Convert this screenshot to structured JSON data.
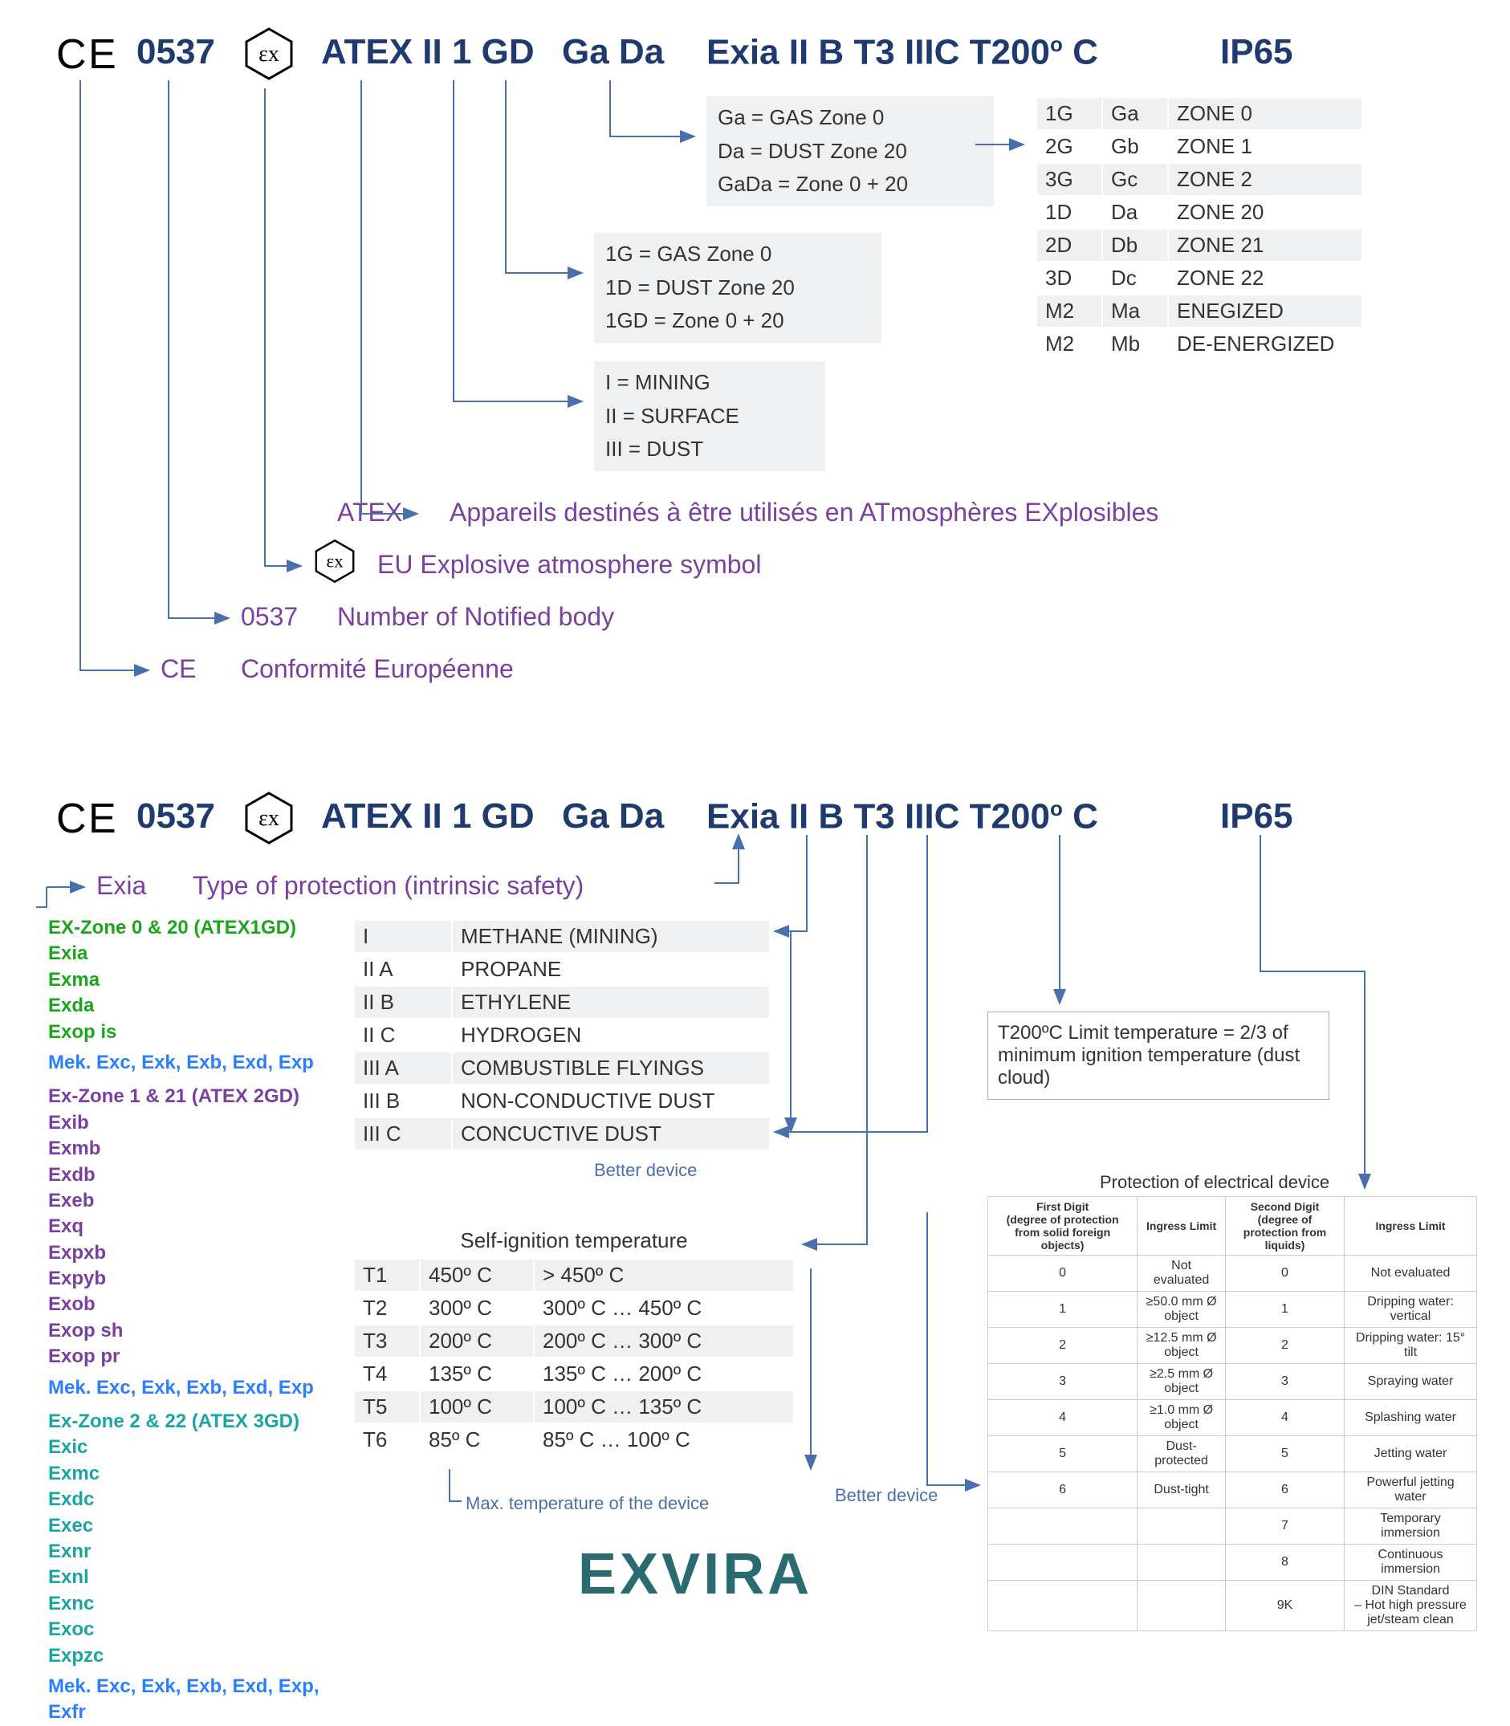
{
  "header": {
    "ce_text": "C E",
    "nb": "0537",
    "atex": "ATEX II 1 GD",
    "gada": "Ga Da",
    "exia": "Exia II B T3 IIIC T200",
    "exia_unit": "C",
    "ip": "IP65"
  },
  "gada_box": {
    "lines": [
      "Ga = GAS Zone 0",
      "Da = DUST Zone 20",
      "GaDa = Zone 0 + 20"
    ]
  },
  "onegd_box": {
    "lines": [
      "1G = GAS Zone 0",
      "1D = DUST Zone 20",
      "1GD = Zone 0 + 20"
    ]
  },
  "group_box": {
    "lines": [
      "I = MINING",
      "II = SURFACE",
      "III =  DUST"
    ]
  },
  "epl_table": {
    "rows": [
      [
        "1G",
        "Ga",
        "ZONE 0"
      ],
      [
        "2G",
        "Gb",
        "ZONE 1"
      ],
      [
        "3G",
        "Gc",
        "ZONE 2"
      ],
      [
        "1D",
        "Da",
        "ZONE 20"
      ],
      [
        "2D",
        "Db",
        "ZONE 21"
      ],
      [
        "3D",
        "Dc",
        "ZONE 22"
      ],
      [
        "M2",
        "Ma",
        "ENEGIZED"
      ],
      [
        "M2",
        "Mb",
        "DE-ENERGIZED"
      ]
    ]
  },
  "defs": {
    "atex_key": "ATEX",
    "atex_val": "Appareils destinés à être utilisés en ATmosphères EXplosibles",
    "ex_val": "EU Explosive atmosphere symbol",
    "nb_key": "0537",
    "nb_val": "Number of Notified body",
    "ce_key": "CE",
    "ce_val": "Conformité Européenne"
  },
  "exia_def": {
    "key": "Exia",
    "val": "Type of protection (intrinsic safety)"
  },
  "gas_table": {
    "rows": [
      [
        "I",
        "METHANE (MINING)"
      ],
      [
        "II A",
        "PROPANE"
      ],
      [
        "II B",
        "ETHYLENE"
      ],
      [
        "II C",
        "HYDROGEN"
      ],
      [
        "III A",
        "COMBUSTIBLE FLYINGS"
      ],
      [
        "III B",
        "NON-CONDUCTIVE DUST"
      ],
      [
        "III C",
        "CONCUCTIVE DUST"
      ]
    ],
    "better": "Better device"
  },
  "temp_table": {
    "title": "Self-ignition temperature",
    "rows": [
      [
        "T1",
        "450º C",
        "> 450º C"
      ],
      [
        "T2",
        "300º C",
        "300º C … 450º C"
      ],
      [
        "T3",
        "200º C",
        "200º C … 300º C"
      ],
      [
        "T4",
        "135º C",
        "135º C … 200º C"
      ],
      [
        "T5",
        "100º C",
        "100º C … 135º C"
      ],
      [
        "T6",
        "85º C",
        "85º C … 100º C"
      ]
    ],
    "max_note": "Max. temperature of the device",
    "better": "Better device"
  },
  "ex_types": {
    "z0_title": "EX-Zone 0 & 20 (ATEX1GD)",
    "z0_items": [
      "Exia",
      "Exma",
      "Exda",
      "Exop is"
    ],
    "z0_mek": "Mek. Exc, Exk, Exb, Exd, Exp",
    "z1_title": "Ex-Zone 1 & 21 (ATEX 2GD)",
    "z1_items": [
      "Exib",
      "Exmb",
      "Exdb",
      "Exeb",
      "Exq",
      "Expxb",
      "Expyb",
      "Exob",
      "Exop sh",
      "Exop pr"
    ],
    "z1_mek": "Mek. Exc, Exk, Exb, Exd, Exp",
    "z2_title": "Ex-Zone 2 & 22 (ATEX 3GD)",
    "z2_items": [
      "Exic",
      "Exmc",
      "Exdc",
      "Exec",
      "Exnr",
      "Exnl",
      "Exnc",
      "Exoc",
      "Expzc"
    ],
    "z2_mek": "Mek. Exc, Exk, Exb, Exd, Exp, Exfr"
  },
  "t200_note": "T200ºC Limit temperature = 2/3 of minimum ignition temperature (dust cloud)",
  "ip_title": "Protection of electrical device",
  "ip_headers": [
    "First Digit\n(degree of protection from solid foreign objects)",
    "Ingress Limit",
    "Second Digit\n(degree of protection from liquids)",
    "Ingress Limit"
  ],
  "ip_rows": [
    [
      "0",
      "Not evaluated",
      "0",
      "Not evaluated"
    ],
    [
      "1",
      "≥50.0 mm Ø object",
      "1",
      "Dripping water: vertical"
    ],
    [
      "2",
      "≥12.5 mm Ø object",
      "2",
      "Dripping water: 15° tilt"
    ],
    [
      "3",
      "≥2.5 mm Ø object",
      "3",
      "Spraying water"
    ],
    [
      "4",
      "≥1.0 mm Ø object",
      "4",
      "Splashing water"
    ],
    [
      "5",
      "Dust-protected",
      "5",
      "Jetting water"
    ],
    [
      "6",
      "Dust-tight",
      "6",
      "Powerful jetting water"
    ],
    [
      "",
      "",
      "7",
      "Temporary immersion"
    ],
    [
      "",
      "",
      "8",
      "Continuous immersion"
    ],
    [
      "",
      "",
      "9K",
      "DIN Standard\n– Hot high pressure jet/steam clean"
    ]
  ],
  "logo": "EXVIRA",
  "colors": {
    "header": "#1f3a6e",
    "purple": "#7b3fa0",
    "arrow": "#4a6fae",
    "green": "#1aa61a",
    "blue": "#2a7fff",
    "teal": "#1aa4a4",
    "grey": "#eef0f2",
    "logo": "#2a6b72"
  }
}
